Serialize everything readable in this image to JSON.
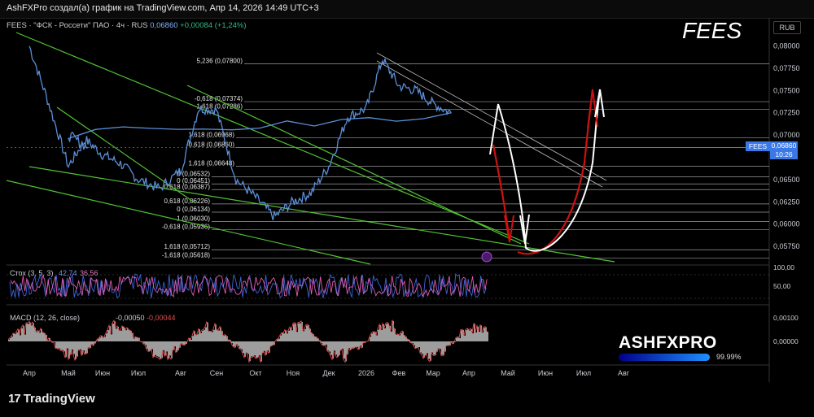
{
  "window": {
    "caption": "AshFXPro создал(а) график на TradingView.com, Апр 14, 2026 14:49 UTC+3"
  },
  "legend": {
    "symbol": "FEES · \"ФСК - Россети\" ПАО · 4ч · RUS",
    "last": "0,06860",
    "change": "+0,00084 (+1,24%)"
  },
  "watermark_title": "FEES",
  "currency": "RUB",
  "price_tag": {
    "symbol": "FEES",
    "price": "0,06860",
    "timer": "10:26"
  },
  "branding": {
    "name": "ASHFXPRO",
    "percent": "99.99%",
    "bar_fraction": 0.9999
  },
  "footer": {
    "logo": "TradingView",
    "logo_mark": "17"
  },
  "colors": {
    "price_line": "#5b8fd9",
    "trendline": "#52c234",
    "fib_line": "#cfcfcf",
    "projection_red": "#cc1111",
    "projection_white": "#ffffff",
    "stoch_k": "#3d63d6",
    "stoch_d": "#e05bb0",
    "macd_hist": "#b8b8b8",
    "macd_signal": "#e04a4a"
  },
  "chart_data": [
    {
      "type": "line",
      "title": "FEES",
      "x_ticks": [
        "Апр",
        "Май",
        "Июн",
        "Июл",
        "Авг",
        "Сен",
        "Окт",
        "Ноя",
        "Дек",
        "2026",
        "Фев",
        "Мар",
        "Апр",
        "Май",
        "Июн",
        "Июл",
        "Авг"
      ],
      "y_ticks": [
        "0,08000",
        "0,07750",
        "0,07500",
        "0,07250",
        "0,07000",
        "0,06500",
        "0,06250",
        "0,06000",
        "0,05750"
      ],
      "ylim": [
        0.0555,
        0.0815
      ],
      "series": [
        {
          "name": "FEES",
          "x": [
            "Апр",
            "Апр",
            "Май",
            "Май",
            "Июн",
            "Июн",
            "Июл",
            "Июл",
            "Авг",
            "Авг",
            "Сен",
            "Сен",
            "Окт",
            "Окт",
            "Ноя",
            "Ноя",
            "Дек",
            "Дек",
            "2026",
            "2026",
            "Фев",
            "Фев",
            "Мар",
            "Мар",
            "Апр",
            "Апр"
          ],
          "values": [
            0.08,
            0.0735,
            0.0665,
            0.0695,
            0.0678,
            0.0668,
            0.065,
            0.064,
            0.066,
            0.073,
            0.0728,
            0.065,
            0.063,
            0.0608,
            0.0625,
            0.0635,
            0.0665,
            0.072,
            0.073,
            0.0785,
            0.0755,
            0.075,
            0.0735,
            0.0725,
            0.07,
            0.0686
          ]
        }
      ],
      "fib_levels": [
        {
          "label": "5,236 (0,07800)",
          "value": 0.078
        },
        {
          "label": "-0,618 (0,07374)",
          "value": 0.07374
        },
        {
          "label": "1,618 (0,07286)",
          "value": 0.07286
        },
        {
          "label": "1,618 (0,06968)",
          "value": 0.06968
        },
        {
          "label": "-0,618 (0,06860)",
          "value": 0.0686
        },
        {
          "label": "1,618 (0,06648)",
          "value": 0.06648
        },
        {
          "label": "0 (0,06532)",
          "value": 0.06532
        },
        {
          "label": "0 (0,06451)",
          "value": 0.06451
        },
        {
          "label": "0,618 (0,06387)",
          "value": 0.06387
        },
        {
          "label": "0,618 (0,06226)",
          "value": 0.06226
        },
        {
          "label": "0 (0,06134)",
          "value": 0.06134
        },
        {
          "label": "1 (0,06030)",
          "value": 0.0603
        },
        {
          "label": "-0,618 (0,05936)",
          "value": 0.05936
        },
        {
          "label": "1,618 (0,05712)",
          "value": 0.05712
        },
        {
          "label": "-1,618 (0,05618)",
          "value": 0.05618
        }
      ]
    },
    {
      "type": "line",
      "title": "Стох (3, 5, 3)",
      "y_ticks": [
        "100,00",
        "50,00"
      ],
      "ylim": [
        0,
        100
      ],
      "series": [
        {
          "name": "42,74",
          "last": 42.74
        },
        {
          "name": "36,56",
          "last": 36.56
        }
      ]
    },
    {
      "type": "bar",
      "title": "MACD (12, 26, close)",
      "y_ticks": [
        "0,00100",
        "0,00000"
      ],
      "series": [
        {
          "name": "-0,00050",
          "last": -0.0005
        },
        {
          "name": "-0,00044",
          "last": -0.00044
        }
      ]
    }
  ]
}
